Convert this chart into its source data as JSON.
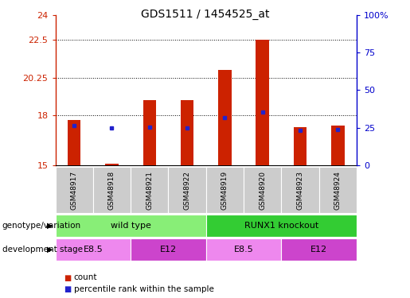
{
  "title": "GDS1511 / 1454525_at",
  "samples": [
    "GSM48917",
    "GSM48918",
    "GSM48921",
    "GSM48922",
    "GSM48919",
    "GSM48920",
    "GSM48923",
    "GSM48924"
  ],
  "count_values": [
    17.7,
    15.1,
    18.9,
    18.9,
    20.7,
    22.5,
    17.3,
    17.4
  ],
  "percentile_values": [
    17.4,
    17.25,
    17.3,
    17.25,
    17.85,
    18.2,
    17.1,
    17.15
  ],
  "ymin": 15,
  "ymax": 24,
  "yticks": [
    15,
    18,
    20.25,
    22.5,
    24
  ],
  "ytick_labels": [
    "15",
    "18",
    "20.25",
    "22.5",
    "24"
  ],
  "y2ticks": [
    0,
    25,
    50,
    75,
    100
  ],
  "y2tick_labels": [
    "0",
    "25",
    "50",
    "75",
    "100%"
  ],
  "bar_color": "#cc2200",
  "percentile_color": "#2222cc",
  "bar_width": 0.35,
  "genotype_groups": [
    {
      "label": "wild type",
      "start": 0,
      "end": 4,
      "color": "#88ee77"
    },
    {
      "label": "RUNX1 knockout",
      "start": 4,
      "end": 8,
      "color": "#33cc33"
    }
  ],
  "dev_stage_groups": [
    {
      "label": "E8.5",
      "start": 0,
      "end": 2,
      "color": "#ee88ee"
    },
    {
      "label": "E12",
      "start": 2,
      "end": 4,
      "color": "#cc44cc"
    },
    {
      "label": "E8.5",
      "start": 4,
      "end": 6,
      "color": "#ee88ee"
    },
    {
      "label": "E12",
      "start": 6,
      "end": 8,
      "color": "#cc44cc"
    }
  ],
  "genotype_label": "genotype/variation",
  "dev_stage_label": "development stage",
  "legend_count": "count",
  "legend_percentile": "percentile rank within the sample",
  "axis_color_left": "#cc2200",
  "axis_color_right": "#0000cc",
  "sample_bg": "#cccccc",
  "fig_width": 5.15,
  "fig_height": 3.75,
  "dpi": 100
}
